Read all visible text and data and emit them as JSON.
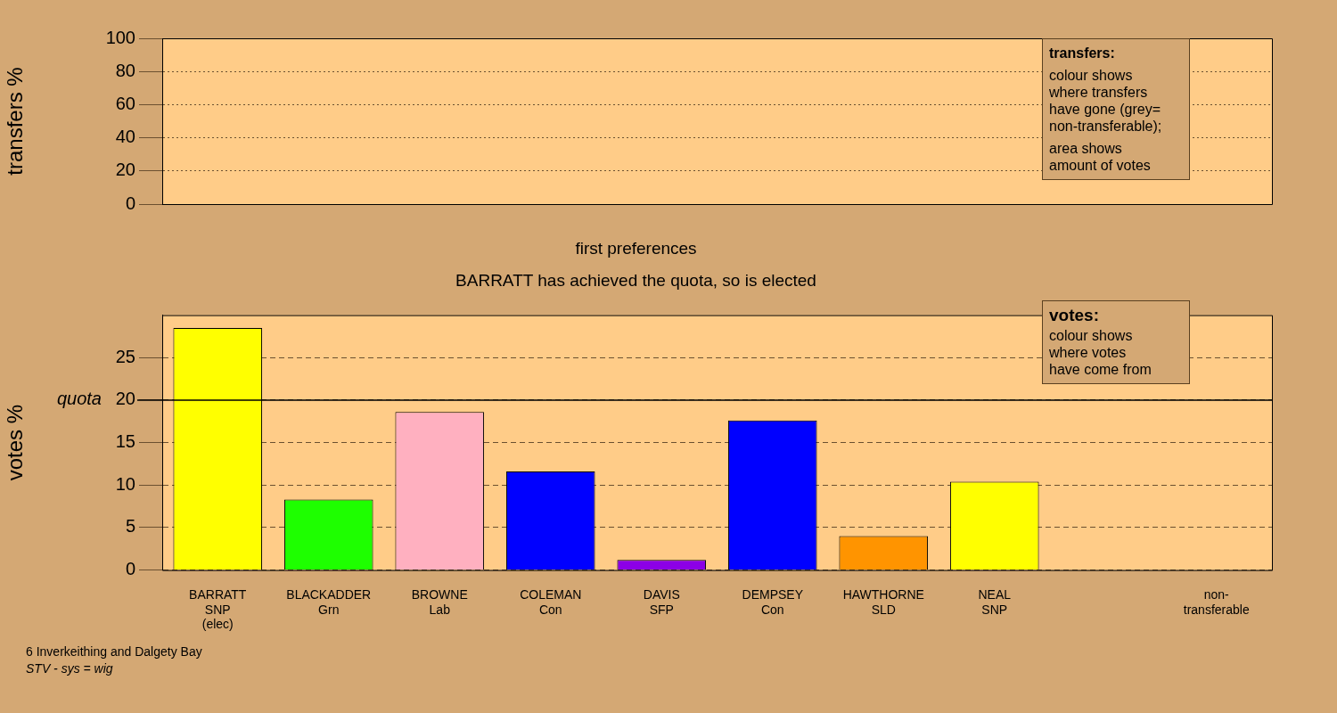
{
  "chart_data": [
    {
      "type": "bar",
      "ylabel": "transfers %",
      "categories": [
        null,
        null,
        null,
        null,
        null,
        null,
        null,
        null,
        null,
        null
      ],
      "values": [
        null,
        null,
        null,
        null,
        null,
        null,
        null,
        null,
        null,
        null
      ],
      "ylim": [
        0,
        100
      ],
      "yticks": [
        0,
        20,
        40,
        60,
        80,
        100
      ],
      "grid": "y",
      "tick_labels": "y",
      "annotations": [
        "transfers:",
        "colour shows\nwhere transfers\nhave gone (grey=\nnon-transferable);",
        "area shows\namount of votes"
      ]
    },
    {
      "type": "bar",
      "title": "first preferences",
      "subtitle": "BARRATT has achieved the quota, so is elected",
      "ylabel": "votes %",
      "categories": [
        "BARRATT\nSNP\n(elec)",
        "BLACKADDER\nGrn",
        "BROWNE\nLab",
        "COLEMAN\nCon",
        "DAVIS\nSFP",
        "DEMPSEY\nCon",
        "HAWTHORNE\nSLD",
        "NEAL\nSNP",
        null,
        "non-\ntransferable"
      ],
      "values": [
        28.5,
        8.3,
        18.6,
        11.6,
        1.2,
        17.6,
        4.0,
        10.4,
        null,
        0
      ],
      "colors": [
        "#ffff00",
        "#1eff00",
        "#ffb0c0",
        "#0000ff",
        "#8c00e6",
        "#0000ff",
        "#ff9400",
        "#ffff00",
        null,
        "#999999"
      ],
      "ylim": [
        0,
        30
      ],
      "yticks": [
        0,
        5,
        10,
        15,
        20,
        25
      ],
      "grid": "y",
      "ref_lines": [
        {
          "axis": "y",
          "value": 20,
          "label": "quota"
        }
      ],
      "annotations": [
        "votes:",
        "colour shows\nwhere votes\nhave come from",
        "6 Inverkeithing and Dalgety Bay",
        "STV - sys = wig"
      ]
    }
  ]
}
